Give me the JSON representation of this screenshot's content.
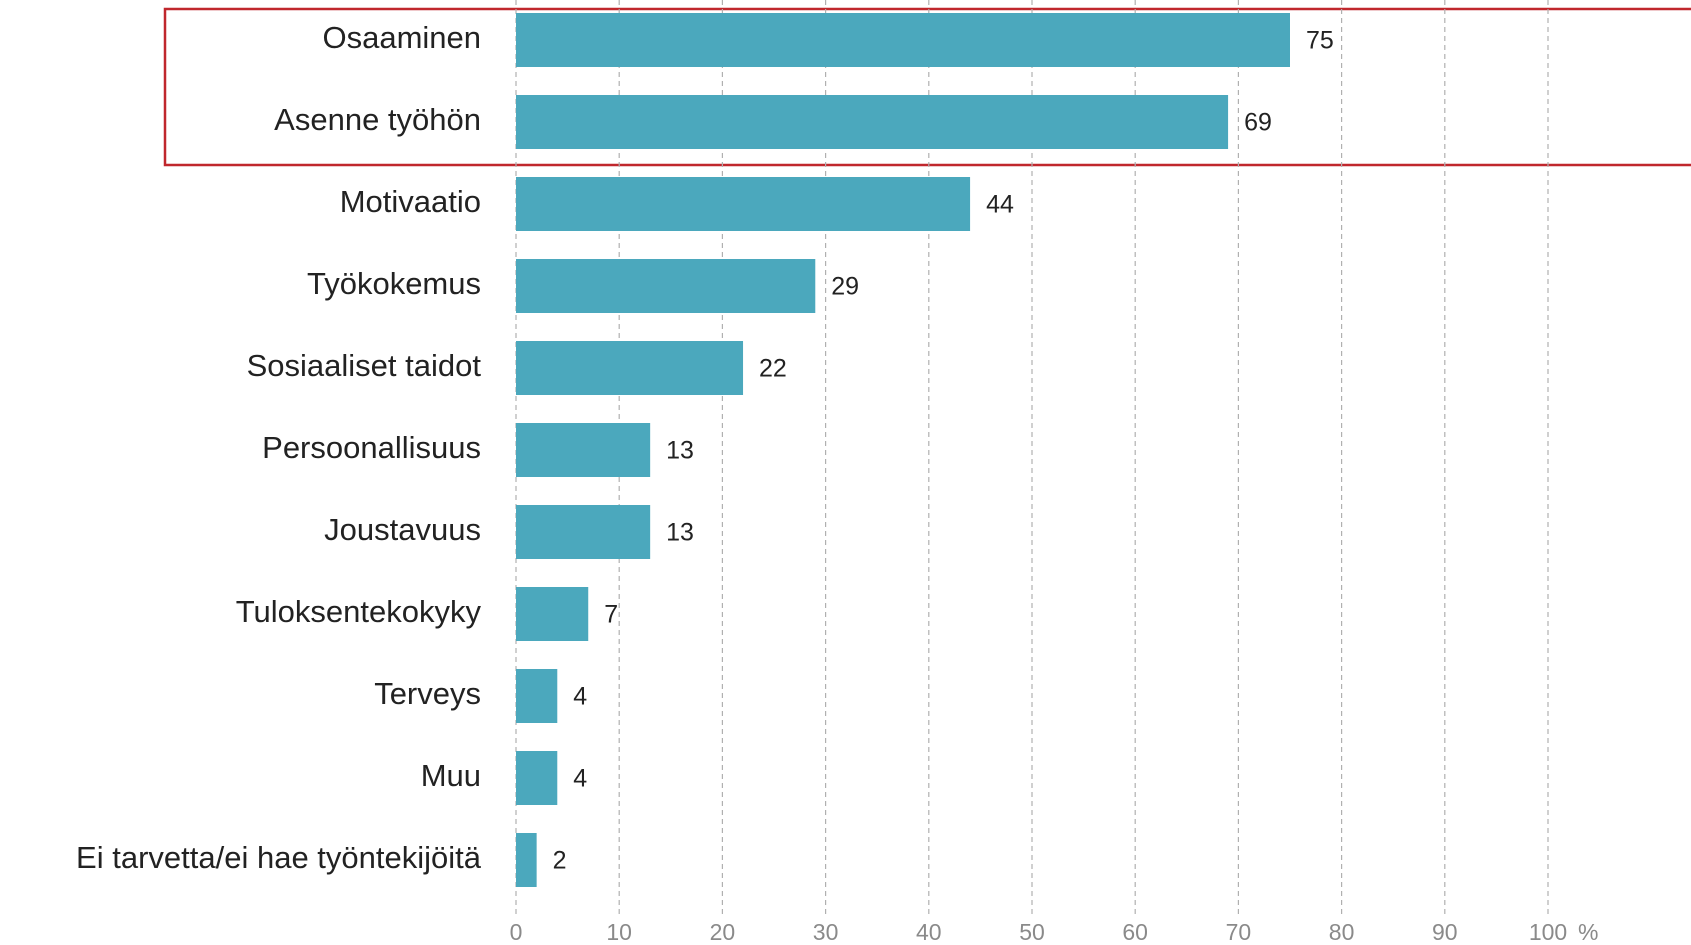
{
  "chart_data": {
    "type": "bar",
    "orientation": "horizontal",
    "categories": [
      "Osaaminen",
      "Asenne työhön",
      "Motivaatio",
      "Työkokemus",
      "Sosiaaliset taidot",
      "Persoonallisuus",
      "Joustavuus",
      "Tuloksentekokyky",
      "Terveys",
      "Muu",
      "Ei tarvetta/ei hae työntekijöitä"
    ],
    "values": [
      75,
      69,
      44,
      29,
      22,
      13,
      13,
      7,
      4,
      4,
      2
    ],
    "color": "#4ba8bd",
    "xlim": [
      0,
      100
    ],
    "xticks": [
      0,
      10,
      20,
      30,
      40,
      50,
      60,
      70,
      80,
      90,
      100
    ],
    "x_label": "%",
    "grid": true
  }
}
